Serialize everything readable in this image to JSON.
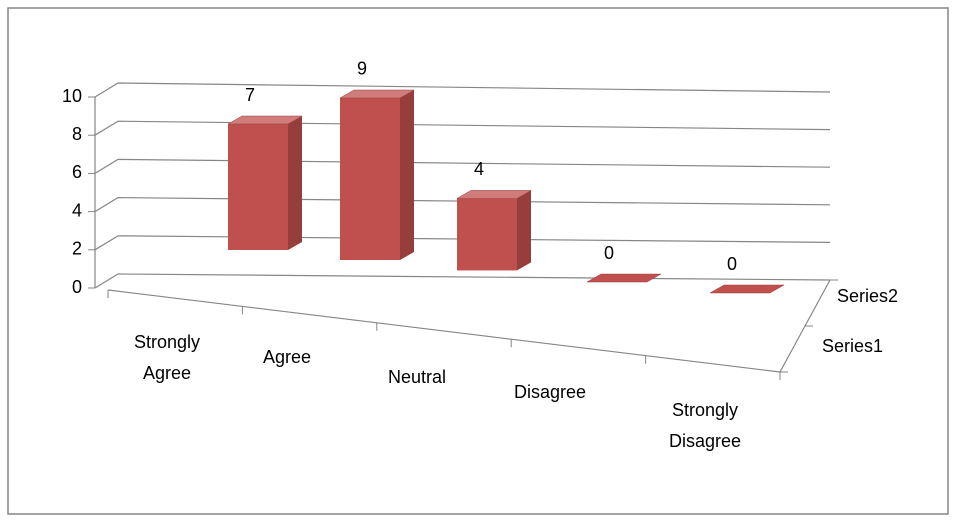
{
  "chart_data": {
    "type": "bar3d",
    "categories": [
      "Strongly Agree",
      "Agree",
      "Neutral",
      "Disagree",
      "Strongly Disagree"
    ],
    "series": [
      {
        "name": "Series1",
        "color": "#c0504d",
        "values": [
          7,
          9,
          4,
          0,
          0
        ]
      },
      {
        "name": "Series2",
        "color": "#4f81bd",
        "values": [
          null,
          null,
          null,
          null,
          null
        ]
      }
    ],
    "ylim": [
      0,
      10
    ],
    "yticks": [
      0,
      2,
      4,
      6,
      8,
      10
    ],
    "grid": true
  }
}
